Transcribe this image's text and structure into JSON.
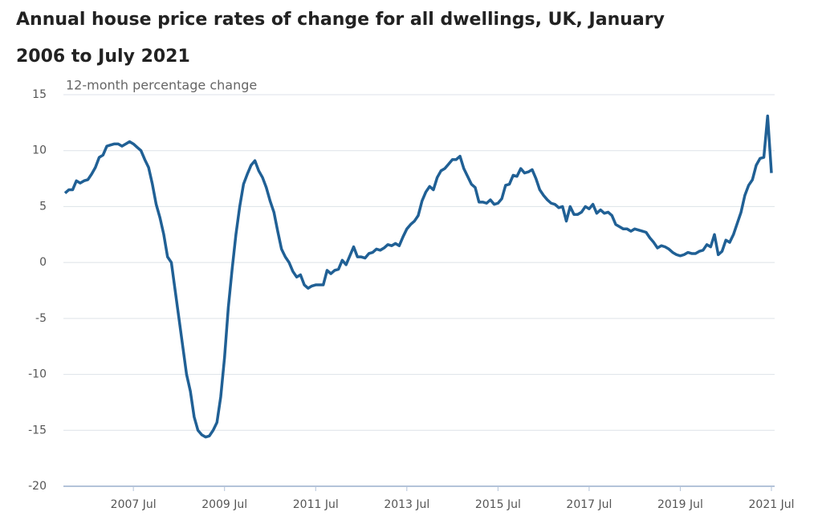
{
  "chart_data": {
    "type": "line",
    "title": "Annual house price rates of change for all dwellings, UK, January 2006 to July 2021",
    "y_label": "12-month percentage change",
    "color": "#206095",
    "grid": true,
    "ylim": [
      -20,
      15
    ],
    "yticks": [
      -20,
      -15,
      -10,
      -5,
      0,
      5,
      10,
      15
    ],
    "categories": [
      null,
      null,
      null,
      null,
      null,
      null,
      null,
      null,
      null,
      null,
      null,
      null,
      null,
      null,
      null,
      null,
      null,
      null,
      "2007 Jul",
      null,
      null,
      null,
      null,
      null,
      null,
      null,
      null,
      null,
      null,
      null,
      null,
      null,
      null,
      null,
      null,
      null,
      null,
      null,
      null,
      null,
      null,
      null,
      "2009 Jul",
      null,
      null,
      null,
      null,
      null,
      null,
      null,
      null,
      null,
      null,
      null,
      null,
      null,
      null,
      null,
      null,
      null,
      null,
      null,
      null,
      null,
      null,
      null,
      "2011 Jul",
      null,
      null,
      null,
      null,
      null,
      null,
      null,
      null,
      null,
      null,
      null,
      null,
      null,
      null,
      null,
      null,
      null,
      null,
      null,
      null,
      null,
      null,
      null,
      "2013 Jul",
      null,
      null,
      null,
      null,
      null,
      null,
      null,
      null,
      null,
      null,
      null,
      null,
      null,
      null,
      null,
      null,
      null,
      null,
      null,
      null,
      null,
      null,
      null,
      "2015 Jul",
      null,
      null,
      null,
      null,
      null,
      null,
      null,
      null,
      null,
      null,
      null,
      null,
      null,
      null,
      null,
      null,
      null,
      null,
      null,
      null,
      null,
      null,
      null,
      "2017 Jul",
      null,
      null,
      null,
      null,
      null,
      null,
      null,
      null,
      null,
      null,
      null,
      null,
      null,
      null,
      null,
      null,
      null,
      null,
      null,
      null,
      null,
      null,
      null,
      "2019 Jul",
      null,
      null,
      null,
      null,
      null,
      null,
      null,
      null,
      null,
      null,
      null,
      null,
      null,
      null,
      null,
      null,
      null,
      null,
      null,
      null,
      null,
      null,
      null,
      "2021 Jul"
    ],
    "values": [
      6.2,
      6.5,
      6.5,
      7.3,
      7.1,
      7.3,
      7.4,
      7.9,
      8.5,
      9.4,
      9.6,
      10.4,
      10.5,
      10.6,
      10.6,
      10.4,
      10.6,
      10.8,
      10.6,
      10.3,
      10.0,
      9.2,
      8.5,
      7.0,
      5.2,
      4.0,
      2.5,
      0.5,
      0.0,
      -2.5,
      -5.0,
      -7.5,
      -10.0,
      -11.5,
      -13.8,
      -15.0,
      -15.4,
      -15.6,
      -15.5,
      -15.0,
      -14.3,
      -12.0,
      -8.5,
      -4.0,
      -0.6,
      2.5,
      5.0,
      7.0,
      7.9,
      8.7,
      9.1,
      8.2,
      7.6,
      6.7,
      5.5,
      4.5,
      2.8,
      1.2,
      0.5,
      0.0,
      -0.8,
      -1.3,
      -1.1,
      -2.0,
      -2.3,
      -2.1,
      -2.0,
      -2.0,
      -2.0,
      -0.7,
      -1.0,
      -0.7,
      -0.6,
      0.2,
      -0.2,
      0.6,
      1.4,
      0.5,
      0.5,
      0.4,
      0.8,
      0.9,
      1.2,
      1.1,
      1.3,
      1.6,
      1.5,
      1.7,
      1.5,
      2.3,
      3.0,
      3.4,
      3.7,
      4.2,
      5.5,
      6.3,
      6.8,
      6.5,
      7.6,
      8.2,
      8.4,
      8.8,
      9.2,
      9.2,
      9.5,
      8.4,
      7.7,
      7.0,
      6.7,
      5.4,
      5.4,
      5.3,
      5.6,
      5.2,
      5.3,
      5.7,
      6.9,
      7.0,
      7.8,
      7.7,
      8.4,
      8.0,
      8.1,
      8.3,
      7.5,
      6.5,
      6.0,
      5.6,
      5.3,
      5.2,
      4.9,
      5.0,
      3.7,
      5.0,
      4.3,
      4.3,
      4.5,
      5.0,
      4.8,
      5.2,
      4.4,
      4.7,
      4.4,
      4.5,
      4.2,
      3.4,
      3.2,
      3.0,
      3.0,
      2.8,
      3.0,
      2.9,
      2.8,
      2.7,
      2.2,
      1.8,
      1.3,
      1.5,
      1.4,
      1.2,
      0.9,
      0.7,
      0.6,
      0.7,
      0.9,
      0.8,
      0.8,
      1.0,
      1.1,
      1.6,
      1.4,
      2.5,
      0.7,
      1.0,
      2.0,
      1.8,
      2.5,
      3.5,
      4.5,
      6.0,
      6.9,
      7.4,
      8.7,
      9.3,
      9.4,
      13.1,
      8.0
    ]
  }
}
